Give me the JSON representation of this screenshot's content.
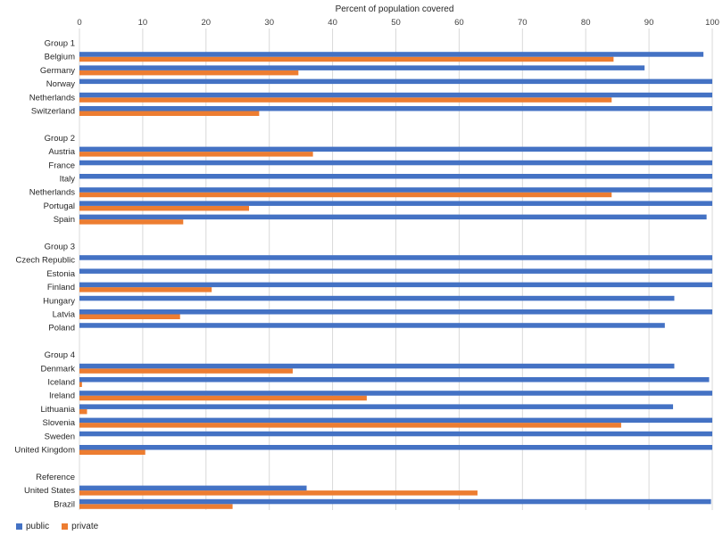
{
  "chart_data": {
    "type": "bar",
    "orientation": "horizontal",
    "title": "Percent of population covered",
    "xlim": [
      0,
      100
    ],
    "xticks": [
      0,
      10,
      20,
      30,
      40,
      50,
      60,
      70,
      80,
      90,
      100
    ],
    "grid": true,
    "legend_position": "bottom-left",
    "series": [
      {
        "name": "public",
        "color": "#4472C4"
      },
      {
        "name": "private",
        "color": "#ED7D31"
      }
    ],
    "groups": [
      {
        "label": "Group 1",
        "rows": [
          {
            "country": "Belgium",
            "public": 98.6,
            "private": 84.4
          },
          {
            "country": "Germany",
            "public": 89.3,
            "private": 34.6
          },
          {
            "country": "Norway",
            "public": 100,
            "private": null
          },
          {
            "country": "Netherlands",
            "public": 100,
            "private": 84.1
          },
          {
            "country": "Switzerland",
            "public": 100,
            "private": 28.4
          }
        ]
      },
      {
        "label": "Group 2",
        "rows": [
          {
            "country": "Austria",
            "public": 100,
            "private": 36.9
          },
          {
            "country": "France",
            "public": 100,
            "private": null
          },
          {
            "country": "Italy",
            "public": 100,
            "private": null
          },
          {
            "country": "Netherlands",
            "public": 100,
            "private": 84.1
          },
          {
            "country": "Portugal",
            "public": 100,
            "private": 26.8
          },
          {
            "country": "Spain",
            "public": 99.1,
            "private": 16.4
          }
        ]
      },
      {
        "label": "Group 3",
        "rows": [
          {
            "country": "Czech Republic",
            "public": 100,
            "private": null
          },
          {
            "country": "Estonia",
            "public": 100,
            "private": null
          },
          {
            "country": "Finland",
            "public": 100,
            "private": 20.9
          },
          {
            "country": "Hungary",
            "public": 94.0,
            "private": null
          },
          {
            "country": "Latvia",
            "public": 100,
            "private": 15.9
          },
          {
            "country": "Poland",
            "public": 92.5,
            "private": null
          }
        ]
      },
      {
        "label": "Group 4",
        "rows": [
          {
            "country": "Denmark",
            "public": 94.0,
            "private": 33.7
          },
          {
            "country": "Iceland",
            "public": 99.5,
            "private": 0.4
          },
          {
            "country": "Ireland",
            "public": 100,
            "private": 45.4
          },
          {
            "country": "Lithuania",
            "public": 93.8,
            "private": 1.2
          },
          {
            "country": "Slovenia",
            "public": 100,
            "private": 85.6
          },
          {
            "country": "Sweden",
            "public": 100,
            "private": null
          },
          {
            "country": "United Kingdom",
            "public": 100,
            "private": 10.4
          }
        ]
      },
      {
        "label": "Reference",
        "rows": [
          {
            "country": "United States",
            "public": 35.9,
            "private": 62.9
          },
          {
            "country": "Brazil",
            "public": 99.8,
            "private": 24.2
          }
        ]
      }
    ]
  }
}
